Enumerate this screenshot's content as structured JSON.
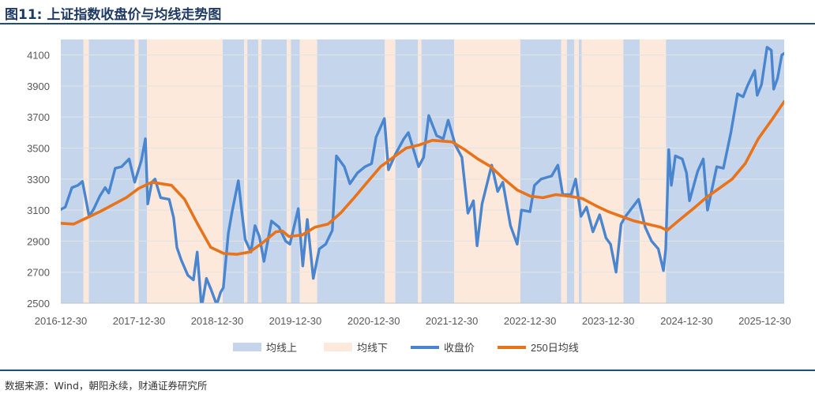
{
  "header": {
    "title": "图11: 上证指数收盘价与均线走势图"
  },
  "footer": {
    "source": "数据来源：Wind，朝阳永续，财通证券研究所"
  },
  "colors": {
    "above": "#c5d6ec",
    "below": "#fce9dc",
    "close": "#4a86cf",
    "ma250": "#e8731a",
    "rule": "#1f4e79"
  },
  "chart_data": {
    "type": "line",
    "title": "",
    "xlabel": "",
    "ylabel": "",
    "ylim": [
      2500,
      4200
    ],
    "yticks": [
      2500,
      2700,
      2900,
      3100,
      3300,
      3500,
      3700,
      3900,
      4100
    ],
    "xlim": [
      "2016-12-30",
      "2026-03-31"
    ],
    "xticks": [
      "2016-12-30",
      "2017-12-30",
      "2018-12-30",
      "2019-12-30",
      "2020-12-30",
      "2021-12-30",
      "2022-12-30",
      "2023-12-30",
      "2024-12-30",
      "2025-12-30"
    ],
    "grid": true,
    "legend": {
      "position": "bottom",
      "entries": [
        "均线上",
        "均线下",
        "收盘价",
        "250日均线"
      ]
    },
    "regions": [
      {
        "type": "above",
        "start": "2016-12-30",
        "end": "2017-04-15"
      },
      {
        "type": "below",
        "start": "2017-04-15",
        "end": "2017-05-10"
      },
      {
        "type": "above",
        "start": "2017-05-10",
        "end": "2017-12-10"
      },
      {
        "type": "below",
        "start": "2017-12-10",
        "end": "2017-12-28"
      },
      {
        "type": "above",
        "start": "2017-12-28",
        "end": "2018-02-05"
      },
      {
        "type": "below",
        "start": "2018-02-05",
        "end": "2019-01-25"
      },
      {
        "type": "above",
        "start": "2019-01-25",
        "end": "2019-05-05"
      },
      {
        "type": "below",
        "start": "2019-05-05",
        "end": "2019-05-20"
      },
      {
        "type": "above",
        "start": "2019-05-20",
        "end": "2019-07-10"
      },
      {
        "type": "below",
        "start": "2019-07-10",
        "end": "2019-07-25"
      },
      {
        "type": "above",
        "start": "2019-07-25",
        "end": "2019-11-20"
      },
      {
        "type": "below",
        "start": "2019-11-20",
        "end": "2019-12-10"
      },
      {
        "type": "above",
        "start": "2019-12-10",
        "end": "2020-01-20"
      },
      {
        "type": "below",
        "start": "2020-01-20",
        "end": "2020-04-10"
      },
      {
        "type": "above",
        "start": "2020-04-10",
        "end": "2021-02-20"
      },
      {
        "type": "below",
        "start": "2021-02-20",
        "end": "2021-04-10"
      },
      {
        "type": "above",
        "start": "2021-04-10",
        "end": "2021-07-25"
      },
      {
        "type": "below",
        "start": "2021-07-25",
        "end": "2021-08-10"
      },
      {
        "type": "above",
        "start": "2021-08-10",
        "end": "2022-01-10"
      },
      {
        "type": "below",
        "start": "2022-01-10",
        "end": "2022-11-15"
      },
      {
        "type": "above",
        "start": "2022-11-15",
        "end": "2023-05-25"
      },
      {
        "type": "below",
        "start": "2023-05-25",
        "end": "2023-06-20"
      },
      {
        "type": "above",
        "start": "2023-06-20",
        "end": "2023-07-25"
      },
      {
        "type": "below",
        "start": "2023-07-25",
        "end": "2023-08-15"
      },
      {
        "type": "above",
        "start": "2023-08-15",
        "end": "2023-08-28"
      },
      {
        "type": "below",
        "start": "2023-08-28",
        "end": "2024-03-10"
      },
      {
        "type": "above",
        "start": "2024-03-10",
        "end": "2024-05-25"
      },
      {
        "type": "below",
        "start": "2024-05-25",
        "end": "2024-09-25"
      },
      {
        "type": "above",
        "start": "2024-09-25",
        "end": "2026-03-31"
      }
    ],
    "series": [
      {
        "name": "收盘价",
        "color": "#4a86cf",
        "points": [
          [
            "2016-12-30",
            3104
          ],
          [
            "2017-01-20",
            3120
          ],
          [
            "2017-02-20",
            3245
          ],
          [
            "2017-03-20",
            3260
          ],
          [
            "2017-04-10",
            3285
          ],
          [
            "2017-04-28",
            3155
          ],
          [
            "2017-05-11",
            3060
          ],
          [
            "2017-06-01",
            3105
          ],
          [
            "2017-06-30",
            3190
          ],
          [
            "2017-07-25",
            3245
          ],
          [
            "2017-08-11",
            3210
          ],
          [
            "2017-09-10",
            3370
          ],
          [
            "2017-10-10",
            3380
          ],
          [
            "2017-11-14",
            3430
          ],
          [
            "2017-12-10",
            3280
          ],
          [
            "2018-01-10",
            3420
          ],
          [
            "2018-01-29",
            3560
          ],
          [
            "2018-02-09",
            3140
          ],
          [
            "2018-02-28",
            3280
          ],
          [
            "2018-03-15",
            3300
          ],
          [
            "2018-04-10",
            3180
          ],
          [
            "2018-05-20",
            3170
          ],
          [
            "2018-06-10",
            3050
          ],
          [
            "2018-06-25",
            2860
          ],
          [
            "2018-07-15",
            2780
          ],
          [
            "2018-08-15",
            2680
          ],
          [
            "2018-09-10",
            2650
          ],
          [
            "2018-09-28",
            2830
          ],
          [
            "2018-10-18",
            2470
          ],
          [
            "2018-11-10",
            2660
          ],
          [
            "2018-12-01",
            2590
          ],
          [
            "2018-12-28",
            2490
          ],
          [
            "2019-01-15",
            2570
          ],
          [
            "2019-01-28",
            2600
          ],
          [
            "2019-02-20",
            2950
          ],
          [
            "2019-03-10",
            3090
          ],
          [
            "2019-04-08",
            3290
          ],
          [
            "2019-04-25",
            3080
          ],
          [
            "2019-05-10",
            2910
          ],
          [
            "2019-06-06",
            2830
          ],
          [
            "2019-06-25",
            3000
          ],
          [
            "2019-07-15",
            2930
          ],
          [
            "2019-08-06",
            2770
          ],
          [
            "2019-09-10",
            3030
          ],
          [
            "2019-10-15",
            2990
          ],
          [
            "2019-11-15",
            2900
          ],
          [
            "2019-12-05",
            2880
          ],
          [
            "2020-01-13",
            3110
          ],
          [
            "2020-02-03",
            2740
          ],
          [
            "2020-02-24",
            3040
          ],
          [
            "2020-03-23",
            2660
          ],
          [
            "2020-04-20",
            2850
          ],
          [
            "2020-05-20",
            2880
          ],
          [
            "2020-06-20",
            2970
          ],
          [
            "2020-07-09",
            3450
          ],
          [
            "2020-08-15",
            3380
          ],
          [
            "2020-09-10",
            3270
          ],
          [
            "2020-10-15",
            3340
          ],
          [
            "2020-11-20",
            3380
          ],
          [
            "2020-12-20",
            3400
          ],
          [
            "2021-01-10",
            3570
          ],
          [
            "2021-02-18",
            3690
          ],
          [
            "2021-03-09",
            3360
          ],
          [
            "2021-04-10",
            3460
          ],
          [
            "2021-05-20",
            3560
          ],
          [
            "2021-06-10",
            3600
          ],
          [
            "2021-07-28",
            3380
          ],
          [
            "2021-08-20",
            3440
          ],
          [
            "2021-09-13",
            3710
          ],
          [
            "2021-10-20",
            3580
          ],
          [
            "2021-11-20",
            3560
          ],
          [
            "2021-12-13",
            3680
          ],
          [
            "2022-01-15",
            3520
          ],
          [
            "2022-02-15",
            3440
          ],
          [
            "2022-03-15",
            3080
          ],
          [
            "2022-04-10",
            3160
          ],
          [
            "2022-04-27",
            2870
          ],
          [
            "2022-05-20",
            3140
          ],
          [
            "2022-07-04",
            3390
          ],
          [
            "2022-08-01",
            3220
          ],
          [
            "2022-08-25",
            3280
          ],
          [
            "2022-09-30",
            3000
          ],
          [
            "2022-10-31",
            2880
          ],
          [
            "2022-11-20",
            3100
          ],
          [
            "2022-12-30",
            3090
          ],
          [
            "2023-01-20",
            3260
          ],
          [
            "2023-02-20",
            3300
          ],
          [
            "2023-04-10",
            3320
          ],
          [
            "2023-05-09",
            3390
          ],
          [
            "2023-06-01",
            3200
          ],
          [
            "2023-07-10",
            3200
          ],
          [
            "2023-07-31",
            3300
          ],
          [
            "2023-08-25",
            3060
          ],
          [
            "2023-09-20",
            3120
          ],
          [
            "2023-10-20",
            2960
          ],
          [
            "2023-11-20",
            3070
          ],
          [
            "2023-12-20",
            2920
          ],
          [
            "2024-01-10",
            2880
          ],
          [
            "2024-02-05",
            2700
          ],
          [
            "2024-02-28",
            3010
          ],
          [
            "2024-03-20",
            3060
          ],
          [
            "2024-05-20",
            3170
          ],
          [
            "2024-06-20",
            2990
          ],
          [
            "2024-07-20",
            2900
          ],
          [
            "2024-08-20",
            2850
          ],
          [
            "2024-09-13",
            2710
          ],
          [
            "2024-09-24",
            2850
          ],
          [
            "2024-10-08",
            3490
          ],
          [
            "2024-10-20",
            3260
          ],
          [
            "2024-11-08",
            3450
          ],
          [
            "2024-12-10",
            3430
          ],
          [
            "2024-12-30",
            3340
          ],
          [
            "2025-01-13",
            3160
          ],
          [
            "2025-02-20",
            3350
          ],
          [
            "2025-03-18",
            3430
          ],
          [
            "2025-04-07",
            3100
          ],
          [
            "2025-05-20",
            3380
          ],
          [
            "2025-06-20",
            3370
          ],
          [
            "2025-07-10",
            3500
          ],
          [
            "2025-07-25",
            3600
          ],
          [
            "2025-08-25",
            3850
          ],
          [
            "2025-09-20",
            3830
          ],
          [
            "2025-10-10",
            3900
          ],
          [
            "2025-11-13",
            4000
          ],
          [
            "2025-11-25",
            3840
          ],
          [
            "2025-12-15",
            3910
          ],
          [
            "2026-01-10",
            4150
          ],
          [
            "2026-01-30",
            4130
          ],
          [
            "2026-02-10",
            3880
          ],
          [
            "2026-02-28",
            3950
          ],
          [
            "2026-03-20",
            4100
          ],
          [
            "2026-03-31",
            4110
          ]
        ]
      },
      {
        "name": "250日均线",
        "color": "#e8731a",
        "points": [
          [
            "2016-12-30",
            3015
          ],
          [
            "2017-02-28",
            3010
          ],
          [
            "2017-06-30",
            3090
          ],
          [
            "2017-10-31",
            3180
          ],
          [
            "2017-12-29",
            3240
          ],
          [
            "2018-02-28",
            3280
          ],
          [
            "2018-05-31",
            3260
          ],
          [
            "2018-07-31",
            3170
          ],
          [
            "2018-09-30",
            3010
          ],
          [
            "2018-11-30",
            2860
          ],
          [
            "2019-01-31",
            2820
          ],
          [
            "2019-03-31",
            2815
          ],
          [
            "2019-05-31",
            2830
          ],
          [
            "2019-07-31",
            2890
          ],
          [
            "2019-09-30",
            2960
          ],
          [
            "2019-10-31",
            2965
          ],
          [
            "2019-11-30",
            2930
          ],
          [
            "2020-01-31",
            2940
          ],
          [
            "2020-03-31",
            2990
          ],
          [
            "2020-05-31",
            3010
          ],
          [
            "2020-07-31",
            3085
          ],
          [
            "2020-09-30",
            3180
          ],
          [
            "2020-11-30",
            3280
          ],
          [
            "2021-01-31",
            3380
          ],
          [
            "2021-03-31",
            3440
          ],
          [
            "2021-05-31",
            3500
          ],
          [
            "2021-07-31",
            3520
          ],
          [
            "2021-09-30",
            3550
          ],
          [
            "2021-12-31",
            3540
          ],
          [
            "2022-02-28",
            3490
          ],
          [
            "2022-04-30",
            3430
          ],
          [
            "2022-06-30",
            3380
          ],
          [
            "2022-08-31",
            3300
          ],
          [
            "2022-10-31",
            3230
          ],
          [
            "2022-12-31",
            3190
          ],
          [
            "2023-02-28",
            3180
          ],
          [
            "2023-04-30",
            3200
          ],
          [
            "2023-06-30",
            3190
          ],
          [
            "2023-08-31",
            3175
          ],
          [
            "2023-10-31",
            3130
          ],
          [
            "2023-12-31",
            3090
          ],
          [
            "2024-02-29",
            3060
          ],
          [
            "2024-04-30",
            3030
          ],
          [
            "2024-06-30",
            3010
          ],
          [
            "2024-08-31",
            2990
          ],
          [
            "2024-09-30",
            2970
          ],
          [
            "2024-11-30",
            3040
          ],
          [
            "2025-01-31",
            3110
          ],
          [
            "2025-03-31",
            3180
          ],
          [
            "2025-05-31",
            3240
          ],
          [
            "2025-07-31",
            3300
          ],
          [
            "2025-09-30",
            3400
          ],
          [
            "2025-11-30",
            3560
          ],
          [
            "2026-01-31",
            3680
          ],
          [
            "2026-03-31",
            3800
          ]
        ]
      }
    ]
  }
}
